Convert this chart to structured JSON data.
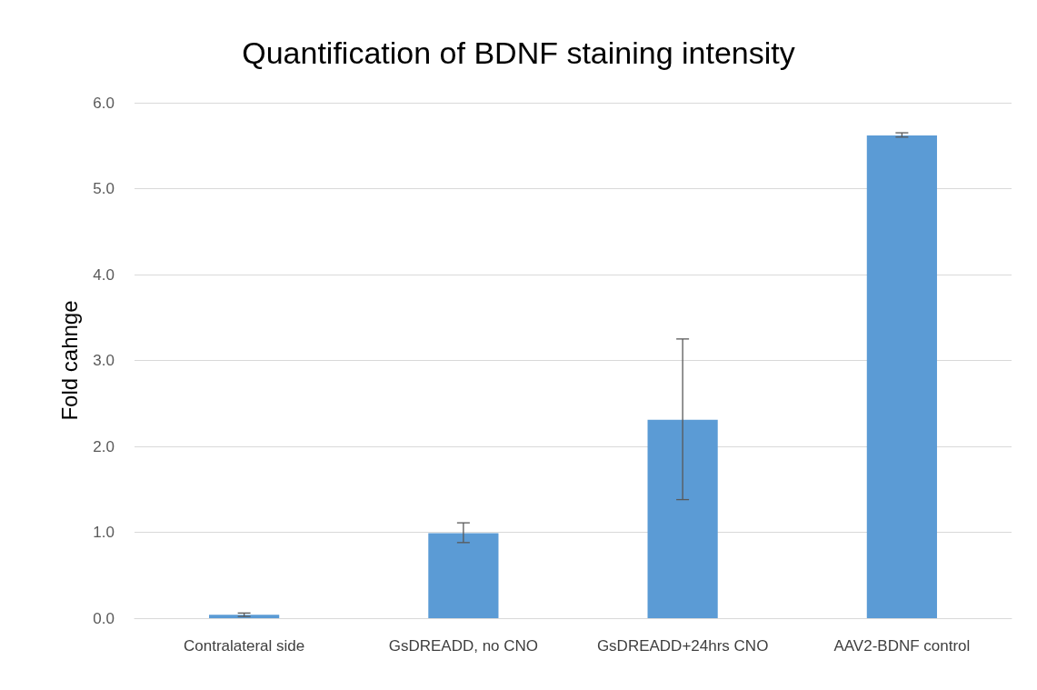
{
  "chart_data": {
    "type": "bar",
    "title": "Quantification of BDNF staining intensity",
    "ylabel": "Fold cahnge",
    "categories": [
      "Contralateral side",
      "GsDREADD, no CNO",
      "GsDREADD+24hrs CNO",
      "AAV2-BDNF control"
    ],
    "values": [
      0.04,
      0.99,
      2.31,
      5.62
    ],
    "errors": [
      [
        0.02,
        0.06
      ],
      [
        0.88,
        1.11
      ],
      [
        1.38,
        3.25
      ],
      [
        5.6,
        5.65
      ]
    ],
    "color": "#5b9bd5",
    "ylim": [
      0,
      6
    ],
    "yticks": [
      {
        "value": 0,
        "label": "0.0"
      },
      {
        "value": 1,
        "label": "1.0"
      },
      {
        "value": 2,
        "label": "2.0"
      },
      {
        "value": 3,
        "label": "3.0"
      },
      {
        "value": 4,
        "label": "4.0"
      },
      {
        "value": 5,
        "label": "5.0"
      },
      {
        "value": 6,
        "label": "6.0"
      }
    ],
    "grid": "y"
  }
}
